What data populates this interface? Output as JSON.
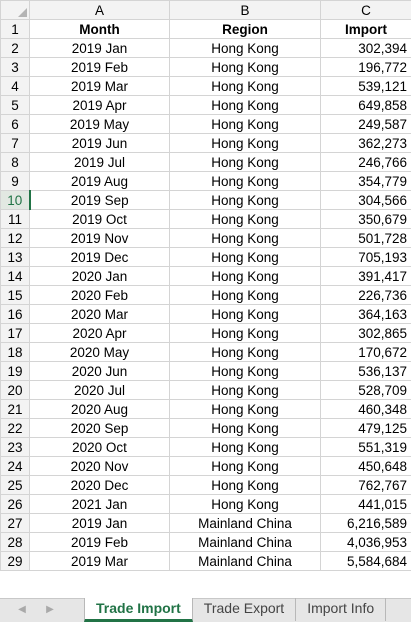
{
  "columns": [
    "A",
    "B",
    "C"
  ],
  "headers": {
    "month": "Month",
    "region": "Region",
    "import": "Import"
  },
  "row_numbers": [
    "1",
    "2",
    "3",
    "4",
    "5",
    "6",
    "7",
    "8",
    "9",
    "10",
    "11",
    "12",
    "13",
    "14",
    "15",
    "16",
    "17",
    "18",
    "19",
    "20",
    "21",
    "22",
    "23",
    "24",
    "25",
    "26",
    "27",
    "28",
    "29"
  ],
  "active_row": "10",
  "rows": [
    {
      "month": "2019 Jan",
      "region": "Hong Kong",
      "import": "302,394"
    },
    {
      "month": "2019 Feb",
      "region": "Hong Kong",
      "import": "196,772"
    },
    {
      "month": "2019 Mar",
      "region": "Hong Kong",
      "import": "539,121"
    },
    {
      "month": "2019 Apr",
      "region": "Hong Kong",
      "import": "649,858"
    },
    {
      "month": "2019 May",
      "region": "Hong Kong",
      "import": "249,587"
    },
    {
      "month": "2019 Jun",
      "region": "Hong Kong",
      "import": "362,273"
    },
    {
      "month": "2019 Jul",
      "region": "Hong Kong",
      "import": "246,766"
    },
    {
      "month": "2019 Aug",
      "region": "Hong Kong",
      "import": "354,779"
    },
    {
      "month": "2019 Sep",
      "region": "Hong Kong",
      "import": "304,566"
    },
    {
      "month": "2019 Oct",
      "region": "Hong Kong",
      "import": "350,679"
    },
    {
      "month": "2019 Nov",
      "region": "Hong Kong",
      "import": "501,728"
    },
    {
      "month": "2019 Dec",
      "region": "Hong Kong",
      "import": "705,193"
    },
    {
      "month": "2020 Jan",
      "region": "Hong Kong",
      "import": "391,417"
    },
    {
      "month": "2020 Feb",
      "region": "Hong Kong",
      "import": "226,736"
    },
    {
      "month": "2020 Mar",
      "region": "Hong Kong",
      "import": "364,163"
    },
    {
      "month": "2020 Apr",
      "region": "Hong Kong",
      "import": "302,865"
    },
    {
      "month": "2020 May",
      "region": "Hong Kong",
      "import": "170,672"
    },
    {
      "month": "2020 Jun",
      "region": "Hong Kong",
      "import": "536,137"
    },
    {
      "month": "2020 Jul",
      "region": "Hong Kong",
      "import": "528,709"
    },
    {
      "month": "2020 Aug",
      "region": "Hong Kong",
      "import": "460,348"
    },
    {
      "month": "2020 Sep",
      "region": "Hong Kong",
      "import": "479,125"
    },
    {
      "month": "2020 Oct",
      "region": "Hong Kong",
      "import": "551,319"
    },
    {
      "month": "2020 Nov",
      "region": "Hong Kong",
      "import": "450,648"
    },
    {
      "month": "2020 Dec",
      "region": "Hong Kong",
      "import": "762,767"
    },
    {
      "month": "2021 Jan",
      "region": "Hong Kong",
      "import": "441,015"
    },
    {
      "month": "2019 Jan",
      "region": "Mainland China",
      "import": "6,216,589"
    },
    {
      "month": "2019 Feb",
      "region": "Mainland China",
      "import": "4,036,953"
    },
    {
      "month": "2019 Mar",
      "region": "Mainland China",
      "import": "5,584,684"
    }
  ],
  "tabs": [
    {
      "label": "Trade Import",
      "active": true
    },
    {
      "label": "Trade Export",
      "active": false
    },
    {
      "label": "Import Info",
      "active": false
    }
  ],
  "nav": {
    "left_icon": "triangle-left-icon",
    "right_icon": "triangle-right-icon",
    "left_glyph": "◀",
    "right_glyph": "▶"
  },
  "colors": {
    "accent": "#217346",
    "header_bg": "#f3f3f3",
    "gridline": "#d4d4d4"
  }
}
